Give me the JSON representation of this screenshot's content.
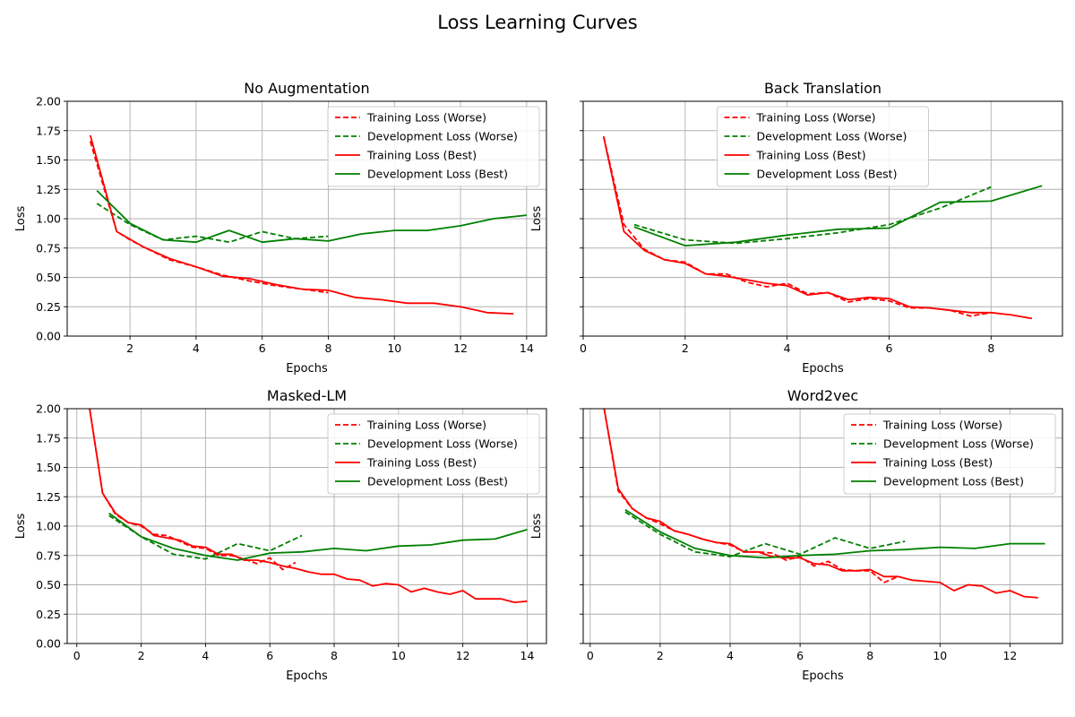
{
  "figure": {
    "title": "Loss Learning Curves"
  },
  "colors": {
    "training": "#ff0000",
    "development": "#008000",
    "grid": "#b0b0b0",
    "axis": "#000000"
  },
  "chart_data": [
    {
      "type": "line",
      "title": "No Augmentation",
      "xlabel": "Epochs",
      "ylabel": "Loss",
      "xlim": [
        0.1,
        14.6
      ],
      "ylim": [
        0,
        2.0
      ],
      "xticks": [
        "2",
        "4",
        "6",
        "8",
        "10",
        "12",
        "14"
      ],
      "yticks": [
        "0.00",
        "0.25",
        "0.50",
        "0.75",
        "1.00",
        "1.25",
        "1.50",
        "1.75",
        "2.00"
      ],
      "grid": true,
      "legend": "top-right",
      "series": [
        {
          "name": "Training Loss (Worse)",
          "color": "#ff0000",
          "dash": "dashed",
          "x": [
            0.8,
            1.6,
            2.0,
            2.4,
            3.2,
            4.0,
            4.8,
            5.6,
            6.4,
            7.2,
            8.0
          ],
          "y": [
            1.66,
            0.89,
            0.82,
            0.76,
            0.65,
            0.59,
            0.52,
            0.47,
            0.43,
            0.4,
            0.37
          ]
        },
        {
          "name": "Development Loss (Worse)",
          "color": "#008000",
          "dash": "dashed",
          "x": [
            1,
            2,
            3,
            4,
            5,
            6,
            7,
            8
          ],
          "y": [
            1.13,
            0.95,
            0.82,
            0.85,
            0.8,
            0.89,
            0.83,
            0.85
          ]
        },
        {
          "name": "Training Loss (Best)",
          "color": "#ff0000",
          "dash": "solid",
          "x": [
            0.8,
            1.6,
            2.4,
            3.2,
            4.0,
            4.8,
            5.6,
            6.4,
            7.2,
            8.0,
            8.8,
            9.6,
            10.4,
            11.2,
            12.0,
            12.8,
            13.6
          ],
          "y": [
            1.71,
            0.89,
            0.76,
            0.66,
            0.59,
            0.51,
            0.49,
            0.44,
            0.4,
            0.39,
            0.33,
            0.31,
            0.28,
            0.28,
            0.25,
            0.2,
            0.19
          ]
        },
        {
          "name": "Development Loss (Best)",
          "color": "#008000",
          "dash": "solid",
          "x": [
            1,
            2,
            3,
            4,
            5,
            6,
            7,
            8,
            9,
            10,
            11,
            12,
            13,
            14
          ],
          "y": [
            1.24,
            0.96,
            0.82,
            0.8,
            0.9,
            0.8,
            0.83,
            0.81,
            0.87,
            0.9,
            0.9,
            0.94,
            1.0,
            1.03
          ]
        }
      ]
    },
    {
      "type": "line",
      "title": "Back Translation",
      "xlabel": "Epochs",
      "ylabel": "Loss",
      "xlim": [
        0,
        9.4
      ],
      "ylim": [
        0,
        2.0
      ],
      "xticks": [
        "0",
        "2",
        "4",
        "6",
        "8"
      ],
      "yticks": [],
      "grid": true,
      "legend": "top-center",
      "series": [
        {
          "name": "Training Loss (Worse)",
          "color": "#ff0000",
          "dash": "dashed",
          "x": [
            0.4,
            0.8,
            1.2,
            1.6,
            2.0,
            2.4,
            2.8,
            3.2,
            3.6,
            4.0,
            4.4,
            4.8,
            5.2,
            5.6,
            6.0,
            6.4,
            6.8,
            7.2,
            7.6,
            8.0
          ],
          "y": [
            1.7,
            0.95,
            0.74,
            0.65,
            0.63,
            0.53,
            0.53,
            0.46,
            0.42,
            0.45,
            0.36,
            0.37,
            0.29,
            0.32,
            0.3,
            0.24,
            0.24,
            0.22,
            0.17,
            0.2
          ]
        },
        {
          "name": "Development Loss (Worse)",
          "color": "#008000",
          "dash": "dashed",
          "x": [
            1,
            2,
            3,
            4,
            5,
            6,
            7,
            8
          ],
          "y": [
            0.95,
            0.82,
            0.79,
            0.83,
            0.88,
            0.95,
            1.09,
            1.27
          ]
        },
        {
          "name": "Training Loss (Best)",
          "color": "#ff0000",
          "dash": "solid",
          "x": [
            0.4,
            0.8,
            1.2,
            1.6,
            2.0,
            2.4,
            2.8,
            3.2,
            3.6,
            4.0,
            4.4,
            4.8,
            5.2,
            5.6,
            6.0,
            6.4,
            6.8,
            7.2,
            7.6,
            8.0,
            8.4,
            8.8
          ],
          "y": [
            1.7,
            0.89,
            0.73,
            0.65,
            0.62,
            0.53,
            0.51,
            0.48,
            0.45,
            0.43,
            0.35,
            0.37,
            0.31,
            0.33,
            0.32,
            0.25,
            0.24,
            0.22,
            0.2,
            0.2,
            0.18,
            0.15
          ]
        },
        {
          "name": "Development Loss (Best)",
          "color": "#008000",
          "dash": "solid",
          "x": [
            1,
            2,
            3,
            4,
            5,
            6,
            7,
            8,
            9
          ],
          "y": [
            0.93,
            0.77,
            0.8,
            0.86,
            0.91,
            0.92,
            1.14,
            1.15,
            1.28
          ]
        }
      ]
    },
    {
      "type": "line",
      "title": "Masked-LM",
      "xlabel": "Epochs",
      "ylabel": "Loss",
      "xlim": [
        -0.3,
        14.6
      ],
      "ylim": [
        0,
        2.0
      ],
      "xticks": [
        "0",
        "2",
        "4",
        "6",
        "8",
        "10",
        "12",
        "14"
      ],
      "yticks": [
        "0.00",
        "0.25",
        "0.50",
        "0.75",
        "1.00",
        "1.25",
        "1.50",
        "1.75",
        "2.00"
      ],
      "grid": true,
      "legend": "top-right",
      "series": [
        {
          "name": "Training Loss (Worse)",
          "color": "#ff0000",
          "dash": "dashed",
          "x": [
            0.4,
            0.8,
            1.2,
            1.6,
            2.0,
            2.4,
            2.8,
            3.2,
            3.6,
            4.0,
            4.4,
            4.8,
            5.2,
            5.6,
            6.0,
            6.4,
            6.8
          ],
          "y": [
            2.0,
            1.28,
            1.1,
            1.03,
            1.0,
            0.93,
            0.92,
            0.87,
            0.82,
            0.81,
            0.75,
            0.75,
            0.72,
            0.68,
            0.73,
            0.63,
            0.69
          ]
        },
        {
          "name": "Development Loss (Worse)",
          "color": "#008000",
          "dash": "dashed",
          "x": [
            1,
            2,
            3,
            4,
            5,
            6,
            7
          ],
          "y": [
            1.09,
            0.91,
            0.76,
            0.72,
            0.85,
            0.79,
            0.92
          ]
        },
        {
          "name": "Training Loss (Best)",
          "color": "#ff0000",
          "dash": "solid",
          "x": [
            0.4,
            0.8,
            1.2,
            1.6,
            2.0,
            2.4,
            2.8,
            3.2,
            3.6,
            4.0,
            4.4,
            4.8,
            5.2,
            5.6,
            6.0,
            6.4,
            6.8,
            7.2,
            7.6,
            8.0,
            8.4,
            8.8,
            9.2,
            9.6,
            10.0,
            10.4,
            10.8,
            11.2,
            11.6,
            12.0,
            12.4,
            12.8,
            13.2,
            13.6,
            14.0
          ],
          "y": [
            2.0,
            1.28,
            1.11,
            1.03,
            1.01,
            0.92,
            0.9,
            0.88,
            0.83,
            0.82,
            0.76,
            0.76,
            0.71,
            0.71,
            0.69,
            0.66,
            0.64,
            0.61,
            0.59,
            0.59,
            0.55,
            0.54,
            0.49,
            0.51,
            0.5,
            0.44,
            0.47,
            0.44,
            0.42,
            0.45,
            0.38,
            0.38,
            0.38,
            0.35,
            0.36
          ]
        },
        {
          "name": "Development Loss (Best)",
          "color": "#008000",
          "dash": "solid",
          "x": [
            1,
            2,
            3,
            4,
            5,
            6,
            7,
            8,
            9,
            10,
            11,
            12,
            13,
            14
          ],
          "y": [
            1.11,
            0.91,
            0.81,
            0.75,
            0.71,
            0.77,
            0.78,
            0.81,
            0.79,
            0.83,
            0.84,
            0.88,
            0.89,
            0.97
          ]
        }
      ]
    },
    {
      "type": "line",
      "title": "Word2vec",
      "xlabel": "Epochs",
      "ylabel": "Loss",
      "xlim": [
        -0.2,
        13.5
      ],
      "ylim": [
        0,
        2.0
      ],
      "xticks": [
        "0",
        "2",
        "4",
        "6",
        "8",
        "10",
        "12"
      ],
      "yticks": [],
      "grid": true,
      "legend": "top-right",
      "series": [
        {
          "name": "Training Loss (Worse)",
          "color": "#ff0000",
          "dash": "dashed",
          "x": [
            0.4,
            0.8,
            1.2,
            1.6,
            2.0,
            2.4,
            2.8,
            3.2,
            3.6,
            4.0,
            4.4,
            4.8,
            5.2,
            5.6,
            6.0,
            6.4,
            6.8,
            7.2,
            7.6,
            8.0,
            8.4,
            8.8
          ],
          "y": [
            2.0,
            1.3,
            1.15,
            1.07,
            1.02,
            0.96,
            0.93,
            0.89,
            0.86,
            0.84,
            0.78,
            0.78,
            0.77,
            0.71,
            0.74,
            0.66,
            0.7,
            0.63,
            0.62,
            0.62,
            0.52,
            0.57
          ]
        },
        {
          "name": "Development Loss (Worse)",
          "color": "#008000",
          "dash": "dashed",
          "x": [
            1,
            2,
            3,
            4,
            5,
            6,
            7,
            8,
            9
          ],
          "y": [
            1.12,
            0.93,
            0.78,
            0.74,
            0.85,
            0.76,
            0.9,
            0.81,
            0.87
          ]
        },
        {
          "name": "Training Loss (Best)",
          "color": "#ff0000",
          "dash": "solid",
          "x": [
            0.4,
            0.8,
            1.2,
            1.6,
            2.0,
            2.4,
            2.8,
            3.2,
            3.6,
            4.0,
            4.4,
            4.8,
            5.2,
            5.6,
            6.0,
            6.4,
            6.8,
            7.2,
            7.6,
            8.0,
            8.4,
            8.8,
            9.2,
            9.6,
            10.0,
            10.4,
            10.8,
            11.2,
            11.6,
            12.0,
            12.4,
            12.8
          ],
          "y": [
            2.0,
            1.32,
            1.15,
            1.07,
            1.04,
            0.96,
            0.93,
            0.89,
            0.86,
            0.85,
            0.78,
            0.78,
            0.74,
            0.73,
            0.73,
            0.68,
            0.67,
            0.62,
            0.62,
            0.63,
            0.57,
            0.57,
            0.54,
            0.53,
            0.52,
            0.45,
            0.5,
            0.49,
            0.43,
            0.45,
            0.4,
            0.39
          ]
        },
        {
          "name": "Development Loss (Best)",
          "color": "#008000",
          "dash": "solid",
          "x": [
            1,
            2,
            3,
            4,
            5,
            6,
            7,
            8,
            9,
            10,
            11,
            12,
            13
          ],
          "y": [
            1.14,
            0.95,
            0.81,
            0.75,
            0.73,
            0.75,
            0.76,
            0.79,
            0.8,
            0.82,
            0.81,
            0.85,
            0.85
          ]
        }
      ]
    }
  ]
}
